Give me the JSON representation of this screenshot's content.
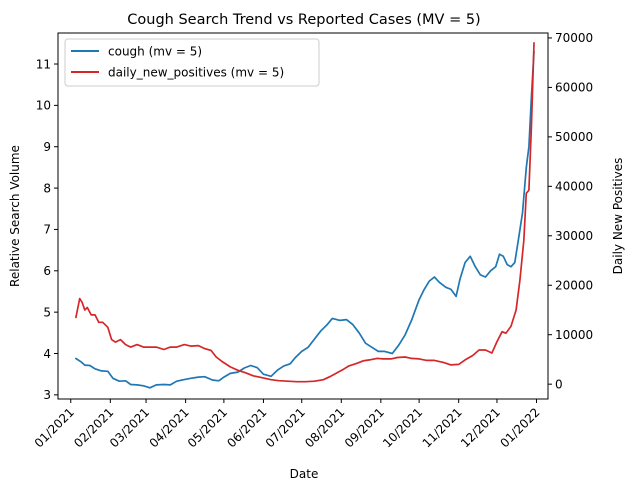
{
  "chart_data": {
    "type": "line",
    "title": "Cough Search Trend vs Reported Cases (MV = 5)",
    "xlabel": "Date",
    "ylabel_left": "Relative Search Volume",
    "ylabel_right": "Daily New Positives",
    "x_ticks": [
      "01/2021",
      "02/2021",
      "03/2021",
      "04/2021",
      "05/2021",
      "06/2021",
      "07/2021",
      "08/2021",
      "09/2021",
      "10/2021",
      "11/2021",
      "12/2021",
      "01/2022"
    ],
    "x_range": [
      "2020-12-22",
      "2022-01-10"
    ],
    "ylim_left": [
      2.9,
      11.75
    ],
    "ylim_right": [
      -3000,
      71000
    ],
    "yticks_left": [
      3,
      4,
      5,
      6,
      7,
      8,
      9,
      10,
      11
    ],
    "yticks_right": [
      0,
      10000,
      20000,
      30000,
      40000,
      50000,
      60000,
      70000
    ],
    "yticks_right_labels": [
      "0",
      "10000",
      "20000",
      "30000",
      "40000",
      "50000",
      "60000",
      "70000"
    ],
    "legend_position": "top-left",
    "series": [
      {
        "name": "cough (mv = 5)",
        "axis": "left",
        "color": "#1f77b4",
        "points": [
          [
            "2021-01-05",
            3.88
          ],
          [
            "2021-01-09",
            3.8
          ],
          [
            "2021-01-12",
            3.72
          ],
          [
            "2021-01-16",
            3.71
          ],
          [
            "2021-01-20",
            3.63
          ],
          [
            "2021-01-25",
            3.58
          ],
          [
            "2021-01-30",
            3.57
          ],
          [
            "2021-02-03",
            3.4
          ],
          [
            "2021-02-08",
            3.33
          ],
          [
            "2021-02-13",
            3.34
          ],
          [
            "2021-02-17",
            3.25
          ],
          [
            "2021-02-22",
            3.24
          ],
          [
            "2021-02-27",
            3.22
          ],
          [
            "2021-03-04",
            3.17
          ],
          [
            "2021-03-09",
            3.24
          ],
          [
            "2021-03-15",
            3.25
          ],
          [
            "2021-03-20",
            3.24
          ],
          [
            "2021-03-25",
            3.33
          ],
          [
            "2021-03-31",
            3.37
          ],
          [
            "2021-04-05",
            3.4
          ],
          [
            "2021-04-11",
            3.43
          ],
          [
            "2021-04-16",
            3.44
          ],
          [
            "2021-04-22",
            3.36
          ],
          [
            "2021-04-27",
            3.34
          ],
          [
            "2021-05-01",
            3.43
          ],
          [
            "2021-05-06",
            3.52
          ],
          [
            "2021-05-12",
            3.55
          ],
          [
            "2021-05-17",
            3.65
          ],
          [
            "2021-05-22",
            3.71
          ],
          [
            "2021-05-27",
            3.66
          ],
          [
            "2021-06-01",
            3.5
          ],
          [
            "2021-06-07",
            3.45
          ],
          [
            "2021-06-12",
            3.6
          ],
          [
            "2021-06-17",
            3.7
          ],
          [
            "2021-06-22",
            3.75
          ],
          [
            "2021-06-26",
            3.9
          ],
          [
            "2021-07-01",
            4.05
          ],
          [
            "2021-07-06",
            4.15
          ],
          [
            "2021-07-11",
            4.35
          ],
          [
            "2021-07-16",
            4.55
          ],
          [
            "2021-07-21",
            4.7
          ],
          [
            "2021-07-25",
            4.85
          ],
          [
            "2021-07-31",
            4.8
          ],
          [
            "2021-08-05",
            4.82
          ],
          [
            "2021-08-10",
            4.7
          ],
          [
            "2021-08-15",
            4.5
          ],
          [
            "2021-08-20",
            4.25
          ],
          [
            "2021-08-25",
            4.15
          ],
          [
            "2021-08-30",
            4.05
          ],
          [
            "2021-09-04",
            4.05
          ],
          [
            "2021-09-10",
            4.0
          ],
          [
            "2021-09-15",
            4.2
          ],
          [
            "2021-09-20",
            4.45
          ],
          [
            "2021-09-25",
            4.8
          ],
          [
            "2021-10-01",
            5.3
          ],
          [
            "2021-10-05",
            5.55
          ],
          [
            "2021-10-09",
            5.75
          ],
          [
            "2021-10-13",
            5.85
          ],
          [
            "2021-10-17",
            5.72
          ],
          [
            "2021-10-22",
            5.6
          ],
          [
            "2021-10-26",
            5.55
          ],
          [
            "2021-10-30",
            5.38
          ],
          [
            "2021-11-02",
            5.8
          ],
          [
            "2021-11-06",
            6.2
          ],
          [
            "2021-11-10",
            6.35
          ],
          [
            "2021-11-14",
            6.1
          ],
          [
            "2021-11-18",
            5.9
          ],
          [
            "2021-11-22",
            5.85
          ],
          [
            "2021-11-26",
            6.0
          ],
          [
            "2021-11-30",
            6.1
          ],
          [
            "2021-12-03",
            6.4
          ],
          [
            "2021-12-06",
            6.35
          ],
          [
            "2021-12-09",
            6.15
          ],
          [
            "2021-12-12",
            6.1
          ],
          [
            "2021-12-15",
            6.2
          ],
          [
            "2021-12-18",
            6.8
          ],
          [
            "2021-12-21",
            7.4
          ],
          [
            "2021-12-24",
            8.5
          ],
          [
            "2021-12-26",
            9.0
          ],
          [
            "2021-12-28",
            10.2
          ],
          [
            "2021-12-30",
            11.3
          ]
        ]
      },
      {
        "name": "daily_new_positives (mv = 5)",
        "axis": "right",
        "color": "#d62728",
        "points": [
          [
            "2021-01-05",
            13500
          ],
          [
            "2021-01-07",
            16000
          ],
          [
            "2021-01-08",
            17300
          ],
          [
            "2021-01-10",
            16500
          ],
          [
            "2021-01-12",
            15000
          ],
          [
            "2021-01-14",
            15500
          ],
          [
            "2021-01-17",
            14000
          ],
          [
            "2021-01-20",
            14000
          ],
          [
            "2021-01-23",
            12500
          ],
          [
            "2021-01-26",
            12500
          ],
          [
            "2021-01-30",
            11500
          ],
          [
            "2021-02-02",
            9000
          ],
          [
            "2021-02-05",
            8500
          ],
          [
            "2021-02-09",
            9000
          ],
          [
            "2021-02-13",
            8000
          ],
          [
            "2021-02-17",
            7500
          ],
          [
            "2021-02-22",
            8000
          ],
          [
            "2021-02-27",
            7500
          ],
          [
            "2021-03-04",
            7500
          ],
          [
            "2021-03-09",
            7500
          ],
          [
            "2021-03-15",
            7000
          ],
          [
            "2021-03-20",
            7500
          ],
          [
            "2021-03-25",
            7500
          ],
          [
            "2021-03-31",
            8000
          ],
          [
            "2021-04-05",
            7700
          ],
          [
            "2021-04-11",
            7800
          ],
          [
            "2021-04-16",
            7200
          ],
          [
            "2021-04-21",
            6800
          ],
          [
            "2021-04-25",
            5500
          ],
          [
            "2021-04-30",
            4500
          ],
          [
            "2021-05-06",
            3500
          ],
          [
            "2021-05-12",
            2800
          ],
          [
            "2021-05-18",
            2300
          ],
          [
            "2021-05-24",
            1700
          ],
          [
            "2021-05-31",
            1300
          ],
          [
            "2021-06-07",
            900
          ],
          [
            "2021-06-13",
            700
          ],
          [
            "2021-06-20",
            600
          ],
          [
            "2021-06-27",
            500
          ],
          [
            "2021-07-04",
            500
          ],
          [
            "2021-07-11",
            600
          ],
          [
            "2021-07-18",
            900
          ],
          [
            "2021-07-23",
            1500
          ],
          [
            "2021-07-28",
            2200
          ],
          [
            "2021-08-02",
            2900
          ],
          [
            "2021-08-07",
            3700
          ],
          [
            "2021-08-13",
            4200
          ],
          [
            "2021-08-18",
            4700
          ],
          [
            "2021-08-23",
            4900
          ],
          [
            "2021-08-29",
            5200
          ],
          [
            "2021-09-03",
            5100
          ],
          [
            "2021-09-09",
            5100
          ],
          [
            "2021-09-14",
            5400
          ],
          [
            "2021-09-20",
            5500
          ],
          [
            "2021-09-25",
            5200
          ],
          [
            "2021-10-01",
            5100
          ],
          [
            "2021-10-07",
            4800
          ],
          [
            "2021-10-13",
            4800
          ],
          [
            "2021-10-20",
            4400
          ],
          [
            "2021-10-26",
            3900
          ],
          [
            "2021-11-01",
            4000
          ],
          [
            "2021-11-06",
            4900
          ],
          [
            "2021-11-12",
            5800
          ],
          [
            "2021-11-17",
            6900
          ],
          [
            "2021-11-22",
            6900
          ],
          [
            "2021-11-27",
            6300
          ],
          [
            "2021-12-01",
            8600
          ],
          [
            "2021-12-05",
            10600
          ],
          [
            "2021-12-08",
            10300
          ],
          [
            "2021-12-12",
            11700
          ],
          [
            "2021-12-16",
            15000
          ],
          [
            "2021-12-19",
            21000
          ],
          [
            "2021-12-22",
            29000
          ],
          [
            "2021-12-24",
            38600
          ],
          [
            "2021-12-26",
            39200
          ],
          [
            "2021-12-28",
            52000
          ],
          [
            "2021-12-30",
            69000
          ]
        ]
      }
    ]
  }
}
